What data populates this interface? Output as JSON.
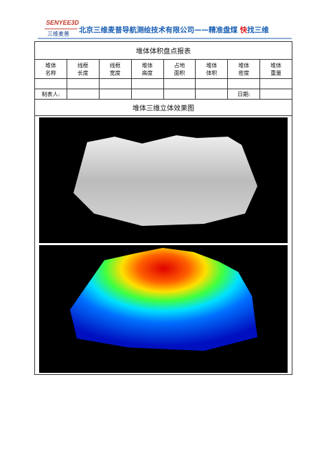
{
  "header": {
    "logo_text": "SENYEE3D",
    "logo_subtext": "三维麦普",
    "company": "北京三维麦普导航测绘技术有限公司——精准盘煤 ",
    "slogan_highlight": "快",
    "slogan_rest": "找三维"
  },
  "table": {
    "title": "堆体体积盘点报表",
    "columns": [
      [
        "堆体",
        "名称"
      ],
      [
        "线框",
        "长度"
      ],
      [
        "线框",
        "宽度"
      ],
      [
        "堆体",
        "高度"
      ],
      [
        "占地",
        "面积"
      ],
      [
        "堆体",
        "体积"
      ],
      [
        "堆体",
        "密度"
      ],
      [
        "堆体",
        "重量"
      ]
    ],
    "preparer_label": "制表人:",
    "date_label": "日期:"
  },
  "section": {
    "title": "堆体三维立体效果图"
  }
}
